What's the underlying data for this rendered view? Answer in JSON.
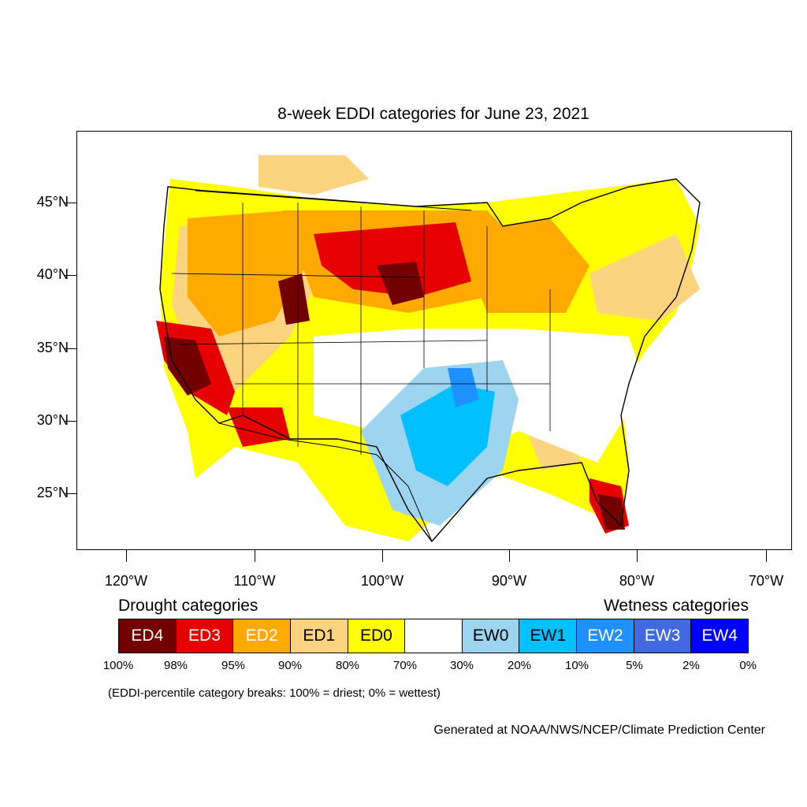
{
  "title": "8-week EDDI categories for June 23, 2021",
  "lat_labels": [
    "45°N",
    "40°N",
    "35°N",
    "30°N",
    "25°N"
  ],
  "lon_labels": [
    "120°W",
    "110°W",
    "100°W",
    "90°W",
    "80°W",
    "70°W"
  ],
  "legend": {
    "drought_heading": "Drought categories",
    "wetness_heading": "Wetness categories",
    "categories": [
      {
        "label": "ED4",
        "color": "#730000",
        "text_color": "#ffffff"
      },
      {
        "label": "ED3",
        "color": "#e60000",
        "text_color": "#ffffff"
      },
      {
        "label": "ED2",
        "color": "#ffaa00",
        "text_color": "#ffffff"
      },
      {
        "label": "ED1",
        "color": "#fcd37f",
        "text_color": "#000000"
      },
      {
        "label": "ED0",
        "color": "#ffff00",
        "text_color": "#000000"
      },
      {
        "label": "",
        "color": "#ffffff",
        "text_color": "#000000"
      },
      {
        "label": "EW0",
        "color": "#9dd4f0",
        "text_color": "#000000"
      },
      {
        "label": "EW1",
        "color": "#00c0ff",
        "text_color": "#000000"
      },
      {
        "label": "EW2",
        "color": "#1e90ff",
        "text_color": "#ffffff"
      },
      {
        "label": "EW3",
        "color": "#4169e1",
        "text_color": "#ffffff"
      },
      {
        "label": "EW4",
        "color": "#0000ff",
        "text_color": "#ffffff"
      }
    ],
    "breaks": [
      "100%",
      "98%",
      "95%",
      "90%",
      "80%",
      "70%",
      "30%",
      "20%",
      "10%",
      "5%",
      "2%",
      "0%"
    ]
  },
  "note": "(EDDI-percentile category breaks: 100% = driest; 0% = wettest)",
  "credit": "Generated at NOAA/NWS/NCEP/Climate Prediction Center"
}
